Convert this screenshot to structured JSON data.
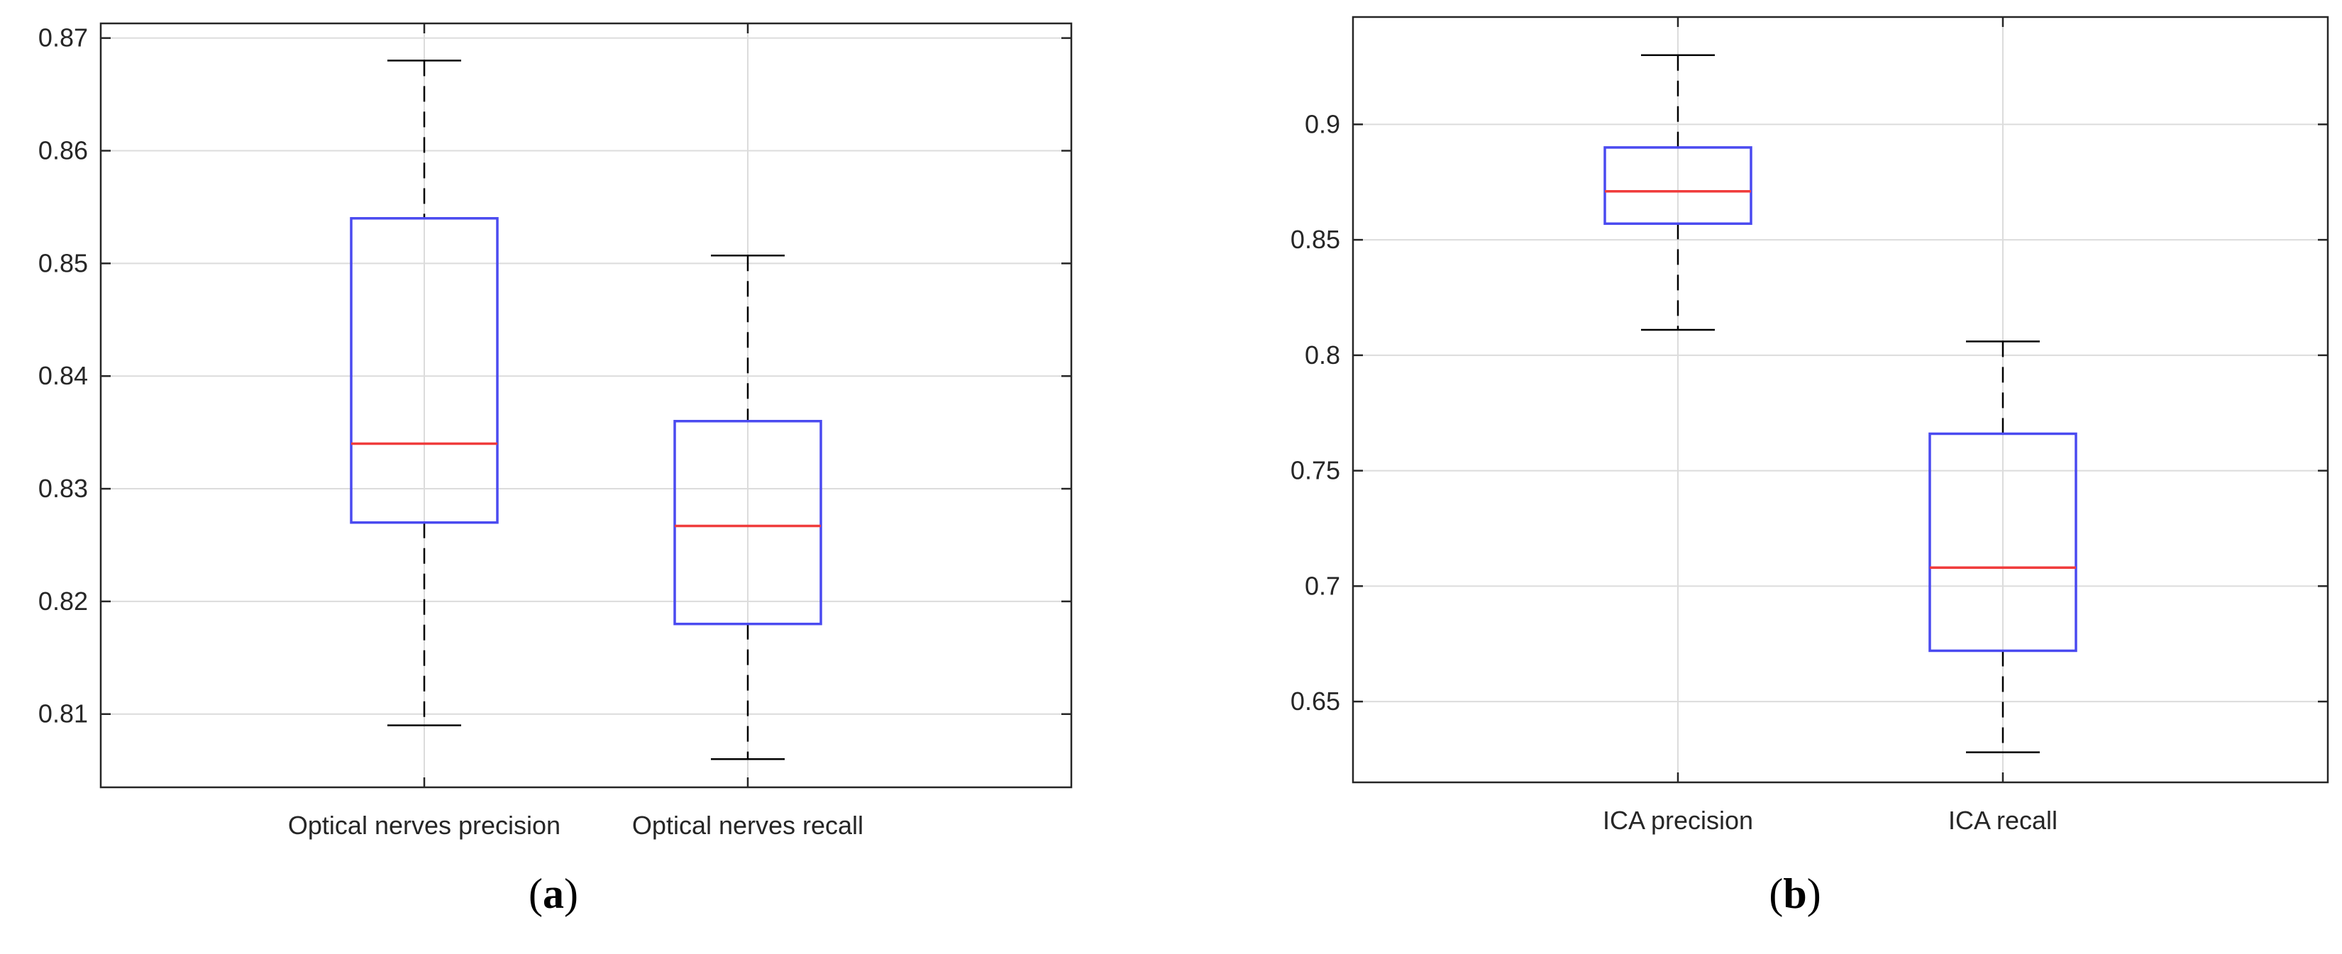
{
  "colors": {
    "box": "#4a4af0",
    "median": "#f03c3c",
    "whisker": "#000000",
    "grid": "#dcdcdc",
    "axes": "#262626"
  },
  "chart_data": [
    {
      "type": "box",
      "panel_label": {
        "open": "(",
        "letter": "a",
        "close": ")"
      },
      "ylim": [
        0.8035,
        0.8713
      ],
      "yticks": [
        0.81,
        0.82,
        0.83,
        0.84,
        0.85,
        0.86,
        0.87
      ],
      "ytick_labels": [
        "0.81",
        "0.82",
        "0.83",
        "0.84",
        "0.85",
        "0.86",
        "0.87"
      ],
      "grid": true,
      "categories": [
        "Optical nerves precision",
        "Optical nerves recall"
      ],
      "boxes": [
        {
          "whisker_low": 0.809,
          "q1": 0.827,
          "median": 0.834,
          "q3": 0.854,
          "whisker_high": 0.868
        },
        {
          "whisker_low": 0.806,
          "q1": 0.818,
          "median": 0.8267,
          "q3": 0.836,
          "whisker_high": 0.8507
        }
      ]
    },
    {
      "type": "box",
      "panel_label": {
        "open": "(",
        "letter": "b",
        "close": ")"
      },
      "ylim": [
        0.615,
        0.9465
      ],
      "yticks": [
        0.65,
        0.7,
        0.75,
        0.8,
        0.85,
        0.9
      ],
      "ytick_labels": [
        "0.65",
        "0.7",
        "0.75",
        "0.8",
        "0.85",
        "0.9"
      ],
      "grid": true,
      "categories": [
        "ICA precision",
        "ICA recall"
      ],
      "boxes": [
        {
          "whisker_low": 0.811,
          "q1": 0.857,
          "median": 0.871,
          "q3": 0.89,
          "whisker_high": 0.93
        },
        {
          "whisker_low": 0.628,
          "q1": 0.672,
          "median": 0.708,
          "q3": 0.766,
          "whisker_high": 0.806
        }
      ]
    }
  ]
}
